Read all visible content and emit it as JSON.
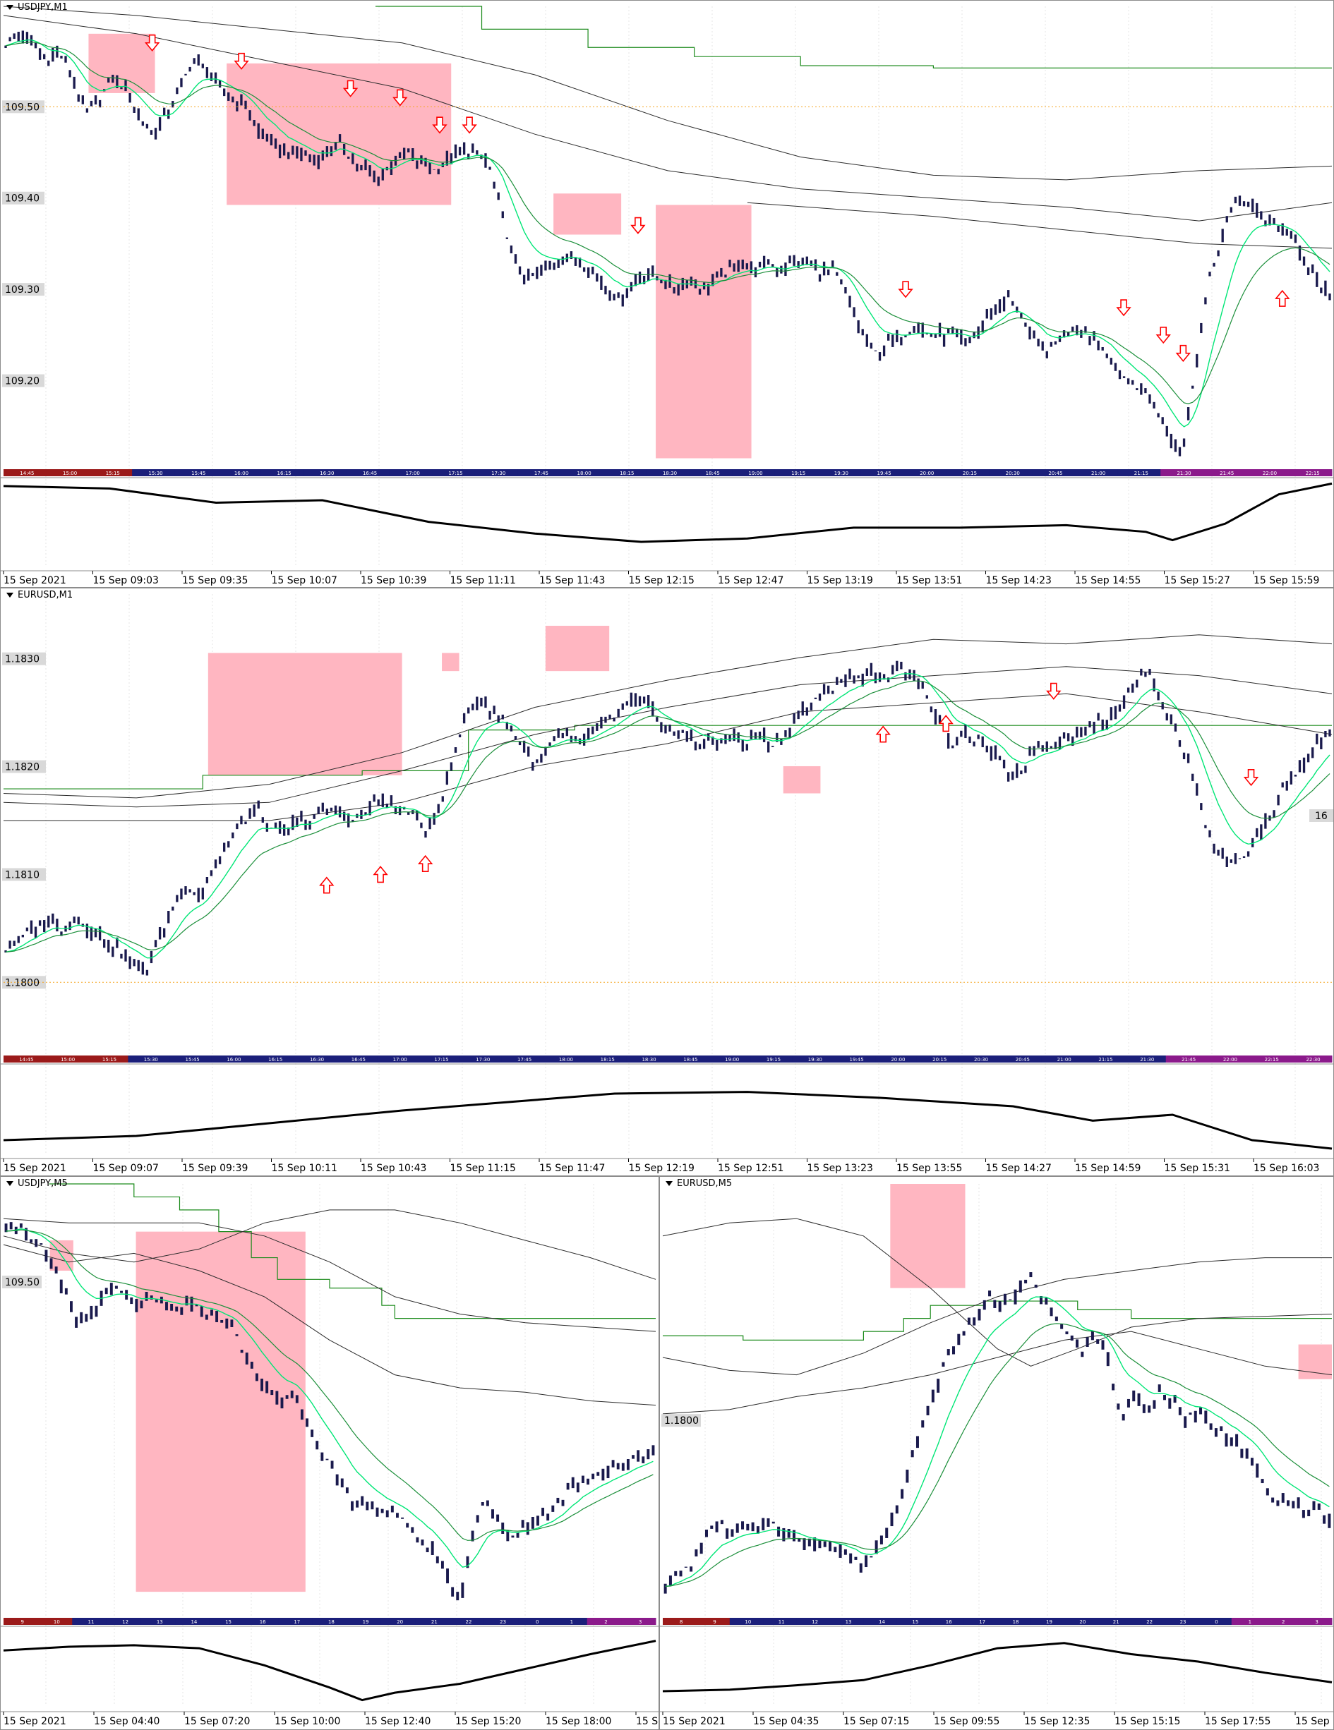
{
  "colors": {
    "box": "#ffb6c1",
    "price": "#1a1a4d",
    "ema_fast": "#00e676",
    "ema_slow": "#1b8f3a",
    "envelope": "#2b2b2b",
    "step": "#1a8a1a",
    "arrow": "#ff0000",
    "level": "#f5a623",
    "osc": "#000000",
    "label_bg": "#d9d9d9"
  },
  "charts": [
    {
      "id": "usdjpy-m1",
      "title": "USDJPY,M1",
      "yticks": [
        "109.50",
        "109.40",
        "109.30",
        "109.20"
      ],
      "xlabels": [
        "15 Sep 2021",
        "15 Sep 09:03",
        "15 Sep 09:35",
        "15 Sep 10:07",
        "15 Sep 10:39",
        "15 Sep 11:11",
        "15 Sep 11:43",
        "15 Sep 12:15",
        "15 Sep 12:47",
        "15 Sep 13:19",
        "15 Sep 13:51",
        "15 Sep 14:23",
        "15 Sep 14:55",
        "15 Sep 15:27",
        "15 Sep 15:59"
      ],
      "session_labels": [
        "14:45",
        "15:00",
        "15:15",
        "15:30",
        "15:45",
        "16:00",
        "16:15",
        "16:30",
        "16:45",
        "17:00",
        "17:15",
        "17:30",
        "17:45",
        "18:00",
        "18:15",
        "18:30",
        "18:45",
        "19:00",
        "19:15",
        "19:30",
        "19:45",
        "20:00",
        "20:15",
        "20:30",
        "20:45",
        "21:00",
        "21:15",
        "21:30",
        "21:45",
        "22:00",
        "22:15"
      ]
    },
    {
      "id": "eurusd-m1",
      "title": "EURUSD,M1",
      "yticks": [
        "1.1830",
        "1.1820",
        "1.1810",
        "1.1800"
      ],
      "price_tag": "16",
      "xlabels": [
        "15 Sep 2021",
        "15 Sep 09:07",
        "15 Sep 09:39",
        "15 Sep 10:11",
        "15 Sep 10:43",
        "15 Sep 11:15",
        "15 Sep 11:47",
        "15 Sep 12:19",
        "15 Sep 12:51",
        "15 Sep 13:23",
        "15 Sep 13:55",
        "15 Sep 14:27",
        "15 Sep 14:59",
        "15 Sep 15:31",
        "15 Sep 16:03"
      ],
      "session_labels": [
        "14:45",
        "15:00",
        "15:15",
        "15:30",
        "15:45",
        "16:00",
        "16:15",
        "16:30",
        "16:45",
        "17:00",
        "17:15",
        "17:30",
        "17:45",
        "18:00",
        "18:15",
        "18:30",
        "18:45",
        "19:00",
        "19:15",
        "19:30",
        "19:45",
        "20:00",
        "20:15",
        "20:30",
        "20:45",
        "21:00",
        "21:15",
        "21:30",
        "21:45",
        "22:00",
        "22:15",
        "22:30"
      ]
    },
    {
      "id": "usdjpy-m5",
      "title": "USDJPY,M5",
      "yticks": [
        "109.50"
      ],
      "xlabels": [
        "15 Sep 2021",
        "15 Sep 04:40",
        "15 Sep 07:20",
        "15 Sep 10:00",
        "15 Sep 12:40",
        "15 Sep 15:20",
        "15 Sep 18:00",
        "15 Se"
      ],
      "session_labels": [
        "9",
        "10",
        "11",
        "12",
        "13",
        "14",
        "15",
        "16",
        "17",
        "18",
        "19",
        "20",
        "21",
        "22",
        "23",
        "0",
        "1",
        "2",
        "3"
      ]
    },
    {
      "id": "eurusd-m5",
      "title": "EURUSD,M5",
      "yticks": [
        "1.1800"
      ],
      "xlabels": [
        "15 Sep 2021",
        "15 Sep 04:35",
        "15 Sep 07:15",
        "15 Sep 09:55",
        "15 Sep 12:35",
        "15 Sep 15:15",
        "15 Sep 17:55",
        "15 Sep 2"
      ],
      "session_labels": [
        "8",
        "9",
        "10",
        "11",
        "12",
        "13",
        "14",
        "15",
        "16",
        "17",
        "18",
        "19",
        "20",
        "21",
        "22",
        "23",
        "0",
        "1",
        "2",
        "3"
      ]
    }
  ],
  "chart_data": [
    {
      "type": "line",
      "title": "USDJPY,M1",
      "ylim": [
        109.11,
        109.61
      ],
      "series": [
        {
          "values": [
            109.57,
            109.58,
            109.57,
            109.55,
            109.56,
            109.53,
            109.49,
            109.51,
            109.53,
            109.52,
            109.49,
            109.47,
            109.49,
            109.52,
            109.55,
            109.54,
            109.52,
            109.51,
            109.5,
            109.47,
            109.46,
            109.45,
            109.45,
            109.44,
            109.45,
            109.46,
            109.44,
            109.43,
            109.42,
            109.44,
            109.45,
            109.44,
            109.43,
            109.44,
            109.45,
            109.45,
            109.44,
            109.39,
            109.33,
            109.31,
            109.32,
            109.33,
            109.34,
            109.33,
            109.32,
            109.3,
            109.29,
            109.31,
            109.32,
            109.31,
            109.3,
            109.31,
            109.3,
            109.31,
            109.32,
            109.33,
            109.32,
            109.33,
            109.32,
            109.33,
            109.33,
            109.32,
            109.32,
            109.29,
            109.25,
            109.23,
            109.24,
            109.25,
            109.26,
            109.25,
            109.25,
            109.25,
            109.24,
            109.26,
            109.28,
            109.29,
            109.27,
            109.24,
            109.23,
            109.25,
            109.26,
            109.25,
            109.24,
            109.21,
            109.2,
            109.19,
            109.17,
            109.14,
            109.12,
            109.22,
            109.31,
            109.36,
            109.4,
            109.39,
            109.38,
            109.37,
            109.36,
            109.33,
            109.31,
            109.29
          ]
        }
      ],
      "arrows_down": [
        [
          0.15,
          109.57
        ],
        [
          0.24,
          109.55
        ],
        [
          0.35,
          109.52
        ],
        [
          0.4,
          109.51
        ],
        [
          0.44,
          109.48
        ],
        [
          0.47,
          109.48
        ],
        [
          0.64,
          109.37
        ],
        [
          0.91,
          109.3
        ],
        [
          1.13,
          109.28
        ],
        [
          1.17,
          109.25
        ],
        [
          1.19,
          109.23
        ]
      ],
      "arrows_up": [
        [
          1.29,
          109.29
        ]
      ]
    },
    {
      "type": "line",
      "title": "EURUSD,M1",
      "ylim": [
        1.1794,
        1.1836
      ],
      "series": [
        {
          "values": [
            1.1803,
            1.1804,
            1.1805,
            1.1806,
            1.1805,
            1.1806,
            1.1805,
            1.1804,
            1.1803,
            1.1802,
            1.1801,
            1.1804,
            1.1807,
            1.1809,
            1.1808,
            1.1811,
            1.1813,
            1.1815,
            1.1816,
            1.1814,
            1.1814,
            1.1815,
            1.1815,
            1.1816,
            1.1816,
            1.1815,
            1.1816,
            1.1817,
            1.1816,
            1.1816,
            1.1814,
            1.1816,
            1.182,
            1.1825,
            1.1826,
            1.1825,
            1.1824,
            1.1822,
            1.182,
            1.1822,
            1.1823,
            1.1822,
            1.1823,
            1.1824,
            1.1825,
            1.1826,
            1.1826,
            1.1824,
            1.1823,
            1.1823,
            1.1822,
            1.1822,
            1.1823,
            1.1822,
            1.1823,
            1.1822,
            1.1823,
            1.1825,
            1.1826,
            1.1827,
            1.1828,
            1.1828,
            1.1829,
            1.1828,
            1.1829,
            1.1829,
            1.1827,
            1.1824,
            1.1822,
            1.1823,
            1.1822,
            1.1821,
            1.1819,
            1.182,
            1.1822,
            1.1822,
            1.1823,
            1.1823,
            1.1824,
            1.1824,
            1.1826,
            1.1828,
            1.1829,
            1.1826,
            1.1823,
            1.182,
            1.1815,
            1.1812,
            1.1811,
            1.1812,
            1.1814,
            1.1816,
            1.1819,
            1.182,
            1.1822,
            1.1823
          ]
        }
      ],
      "arrows_up": [
        [
          0.36,
          1.1809
        ],
        [
          0.42,
          1.181
        ],
        [
          0.47,
          1.1811
        ],
        [
          0.98,
          1.1823
        ],
        [
          1.05,
          1.1824
        ]
      ],
      "arrows_down": [
        [
          1.17,
          1.1827
        ],
        [
          1.39,
          1.1819
        ]
      ]
    },
    {
      "type": "line",
      "title": "USDJPY,M5",
      "series": [
        {
          "values": [
            0.9,
            0.91,
            0.88,
            0.85,
            0.8,
            0.74,
            0.68,
            0.7,
            0.73,
            0.76,
            0.74,
            0.72,
            0.73,
            0.72,
            0.71,
            0.72,
            0.71,
            0.7,
            0.69,
            0.66,
            0.6,
            0.55,
            0.52,
            0.5,
            0.52,
            0.46,
            0.4,
            0.35,
            0.3,
            0.26,
            0.27,
            0.25,
            0.24,
            0.22,
            0.2,
            0.17,
            0.14,
            0.08,
            0.05,
            0.2,
            0.28,
            0.22,
            0.18,
            0.2,
            0.22,
            0.24,
            0.26,
            0.3,
            0.32,
            0.33,
            0.34,
            0.35,
            0.36,
            0.37,
            0.39
          ]
        }
      ]
    },
    {
      "type": "line",
      "title": "EURUSD,M5",
      "series": [
        {
          "values": [
            0.08,
            0.1,
            0.12,
            0.18,
            0.22,
            0.2,
            0.21,
            0.19,
            0.22,
            0.2,
            0.18,
            0.17,
            0.18,
            0.16,
            0.15,
            0.12,
            0.15,
            0.2,
            0.28,
            0.38,
            0.45,
            0.55,
            0.62,
            0.66,
            0.7,
            0.74,
            0.72,
            0.75,
            0.78,
            0.74,
            0.7,
            0.66,
            0.62,
            0.65,
            0.6,
            0.45,
            0.5,
            0.48,
            0.52,
            0.5,
            0.46,
            0.48,
            0.44,
            0.42,
            0.4,
            0.36,
            0.3,
            0.26,
            0.28,
            0.24,
            0.25,
            0.22
          ]
        }
      ]
    }
  ]
}
